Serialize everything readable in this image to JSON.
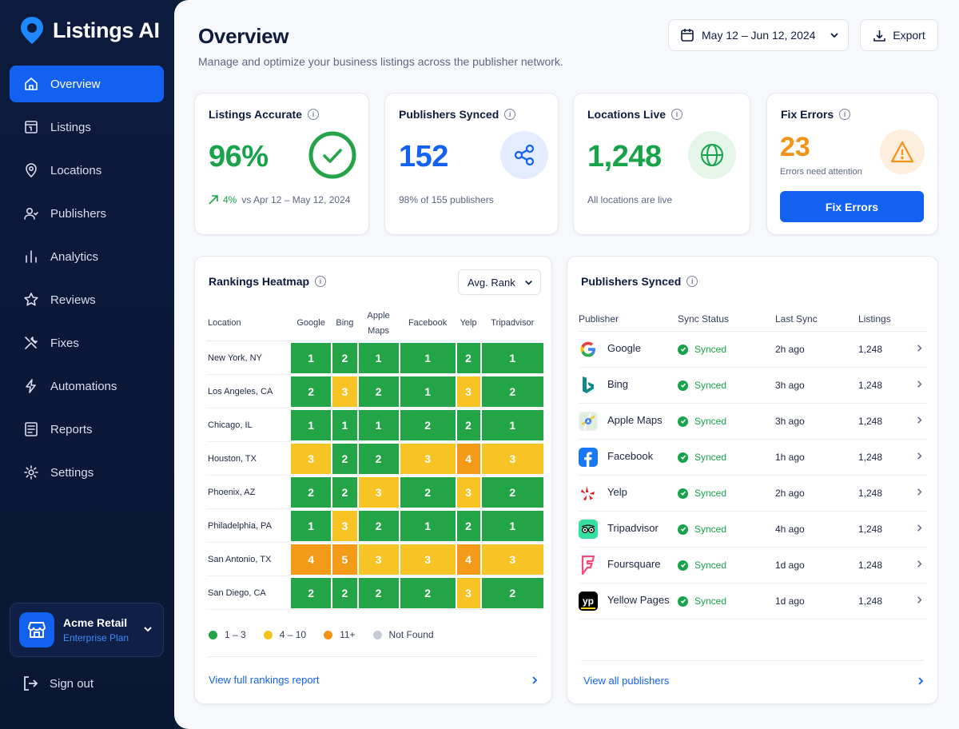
{
  "brand": {
    "name": "Listings AI"
  },
  "nav": [
    {
      "label": "Overview",
      "icon": "home-icon",
      "active": true
    },
    {
      "label": "Listings",
      "icon": "listings-icon"
    },
    {
      "label": "Locations",
      "icon": "location-pin-icon"
    },
    {
      "label": "Publishers",
      "icon": "users-icon"
    },
    {
      "label": "Analytics",
      "icon": "bar-chart-icon"
    },
    {
      "label": "Reviews",
      "icon": "star-icon"
    },
    {
      "label": "Fixes",
      "icon": "tools-icon"
    },
    {
      "label": "Automations",
      "icon": "lightning-icon"
    },
    {
      "label": "Reports",
      "icon": "report-icon"
    },
    {
      "label": "Settings",
      "icon": "gear-icon"
    }
  ],
  "account": {
    "name": "Acme Retail",
    "plan": "Enterprise Plan"
  },
  "signout": "Sign out",
  "header": {
    "title": "Overview",
    "subtitle": "Manage and optimize your business listings across the publisher network.",
    "date_range": "May 12 – Jun 12, 2024",
    "export_label": "Export"
  },
  "kpis": {
    "accurate": {
      "title": "Listings Accurate",
      "value": "96%",
      "delta": "4%",
      "compare": "vs Apr 12 – May 12, 2024"
    },
    "synced": {
      "title": "Publishers Synced",
      "value": "152",
      "foot": "98% of 155 publishers"
    },
    "live": {
      "title": "Locations Live",
      "value": "1,248",
      "foot": "All locations are live"
    },
    "errors": {
      "title": "Fix Errors",
      "value": "23",
      "foot": "Errors need attention",
      "button": "Fix Errors"
    }
  },
  "heatmap": {
    "title": "Rankings Heatmap",
    "select": "Avg. Rank",
    "location_header": "Location",
    "columns": [
      "Google",
      "Bing",
      "Apple Maps",
      "Facebook",
      "Yelp",
      "Tripadvisor"
    ],
    "rows": [
      {
        "location": "New York, NY",
        "ranks": [
          1,
          2,
          1,
          1,
          2,
          1
        ]
      },
      {
        "location": "Los Angeles, CA",
        "ranks": [
          2,
          3,
          2,
          1,
          3,
          2
        ]
      },
      {
        "location": "Chicago, IL",
        "ranks": [
          1,
          1,
          1,
          2,
          2,
          1
        ]
      },
      {
        "location": "Houston, TX",
        "ranks": [
          3,
          2,
          2,
          3,
          4,
          3
        ]
      },
      {
        "location": "Phoenix, AZ",
        "ranks": [
          2,
          2,
          3,
          2,
          3,
          2
        ]
      },
      {
        "location": "Philadelphia, PA",
        "ranks": [
          1,
          3,
          2,
          1,
          2,
          1
        ]
      },
      {
        "location": "San Antonio, TX",
        "ranks": [
          4,
          5,
          3,
          3,
          4,
          3
        ]
      },
      {
        "location": "San Diego, CA",
        "ranks": [
          2,
          2,
          2,
          2,
          3,
          2
        ]
      }
    ],
    "legend": [
      {
        "label": "1 – 3",
        "color": "#22a447"
      },
      {
        "label": "4 – 10",
        "color": "#f5c21b"
      },
      {
        "label": "11+",
        "color": "#f59215"
      },
      {
        "label": "Not Found",
        "color": "#c7cbd6"
      }
    ],
    "link": "View full rankings report",
    "colors": {
      "green": "#22a447",
      "yellow": "#f7c325",
      "orange": "#f39a18"
    }
  },
  "publishers": {
    "title": "Publishers Synced",
    "headers": [
      "Publisher",
      "Sync Status",
      "Last Sync",
      "Listings"
    ],
    "rows": [
      {
        "name": "Google",
        "status": "Synced",
        "last": "2h ago",
        "listings": "1,248",
        "icon": "google-icon"
      },
      {
        "name": "Bing",
        "status": "Synced",
        "last": "3h ago",
        "listings": "1,248",
        "icon": "bing-icon"
      },
      {
        "name": "Apple Maps",
        "status": "Synced",
        "last": "3h ago",
        "listings": "1,248",
        "icon": "apple-maps-icon"
      },
      {
        "name": "Facebook",
        "status": "Synced",
        "last": "1h ago",
        "listings": "1,248",
        "icon": "facebook-icon"
      },
      {
        "name": "Yelp",
        "status": "Synced",
        "last": "2h ago",
        "listings": "1,248",
        "icon": "yelp-icon"
      },
      {
        "name": "Tripadvisor",
        "status": "Synced",
        "last": "4h ago",
        "listings": "1,248",
        "icon": "tripadvisor-icon"
      },
      {
        "name": "Foursquare",
        "status": "Synced",
        "last": "1d ago",
        "listings": "1,248",
        "icon": "foursquare-icon"
      },
      {
        "name": "Yellow Pages",
        "status": "Synced",
        "last": "1d ago",
        "listings": "1,248",
        "icon": "yellow-pages-icon"
      }
    ],
    "link": "View all publishers"
  }
}
